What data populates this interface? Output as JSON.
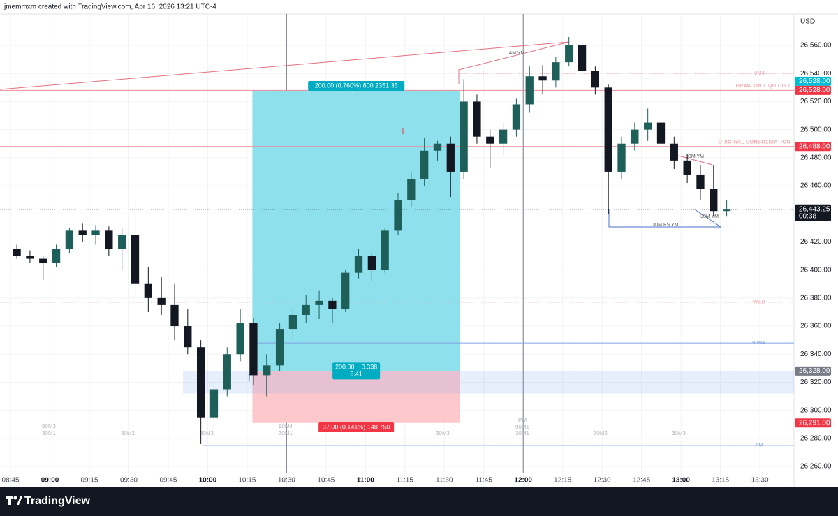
{
  "header": "jmemmxm created with TradingView.com, Apr 16, 2026 13:21 UTC-4",
  "footer": "TradingView",
  "chart_data": {
    "type": "candlestick",
    "currency": "USD",
    "x": [
      "08:45",
      "08:50",
      "08:55",
      "09:00",
      "09:05",
      "09:10",
      "09:15",
      "09:20",
      "09:25",
      "09:30",
      "09:35",
      "09:40",
      "09:45",
      "09:50",
      "09:55",
      "10:00",
      "10:05",
      "10:10",
      "10:15",
      "10:20",
      "10:25",
      "10:30",
      "10:35",
      "10:40",
      "10:45",
      "10:50",
      "10:55",
      "11:00",
      "11:05",
      "11:10",
      "11:15",
      "11:20",
      "11:25",
      "11:30",
      "11:35",
      "11:40",
      "11:45",
      "11:50",
      "11:55",
      "12:00",
      "12:05",
      "12:10",
      "12:15",
      "12:20",
      "12:25",
      "12:30",
      "12:35",
      "12:40",
      "12:45",
      "12:50",
      "12:55",
      "13:00",
      "13:05",
      "13:10",
      "13:15"
    ],
    "open": [
      26415,
      26410,
      26408,
      26405,
      26415,
      26428,
      26425,
      26428,
      26415,
      26425,
      26390,
      26380,
      26375,
      26360,
      26345,
      26295,
      26315,
      26340,
      26362,
      26325,
      26332,
      26358,
      26368,
      26375,
      26378,
      26372,
      26398,
      26410,
      26400,
      26428,
      26450,
      26465,
      26485,
      26490,
      26470,
      26520,
      26495,
      26490,
      26500,
      26518,
      26538,
      26535,
      26548,
      26560,
      26542,
      26530,
      26470,
      26490,
      26500,
      26505,
      26490,
      26478,
      26468,
      26458,
      26442
    ],
    "high": [
      26418,
      26414,
      26410,
      26418,
      26430,
      26433,
      26432,
      26431,
      26430,
      26450,
      26402,
      26395,
      26390,
      26372,
      26350,
      26320,
      26345,
      26372,
      26366,
      26340,
      26362,
      26372,
      26382,
      26385,
      26380,
      26400,
      26415,
      26412,
      26430,
      26455,
      26470,
      26494,
      26492,
      26495,
      26536,
      26525,
      26500,
      26505,
      26522,
      26545,
      26546,
      26552,
      26566,
      26563,
      26545,
      26532,
      26495,
      26505,
      26515,
      26512,
      26495,
      26482,
      26475,
      26475,
      26450
    ],
    "low": [
      26408,
      26405,
      26393,
      26402,
      26412,
      26420,
      26418,
      26410,
      26400,
      26380,
      26370,
      26368,
      26350,
      26340,
      26276,
      26285,
      26310,
      26335,
      26318,
      26310,
      26328,
      26350,
      26362,
      26365,
      26362,
      26370,
      26394,
      26392,
      26398,
      26425,
      26445,
      26460,
      26478,
      26452,
      26465,
      26490,
      26473,
      26482,
      26495,
      26512,
      26525,
      26530,
      26545,
      26538,
      26525,
      26440,
      26465,
      26485,
      26492,
      26485,
      26472,
      26462,
      26450,
      26438,
      26438
    ],
    "close": [
      26410,
      26408,
      26405,
      26415,
      26428,
      26425,
      26428,
      26415,
      26425,
      26390,
      26380,
      26375,
      26360,
      26345,
      26295,
      26315,
      26340,
      26362,
      26325,
      26332,
      26358,
      26368,
      26375,
      26378,
      26372,
      26398,
      26410,
      26400,
      26428,
      26450,
      26465,
      26485,
      26490,
      26470,
      26520,
      26495,
      26490,
      26500,
      26518,
      26538,
      26535,
      26548,
      26560,
      26542,
      26530,
      26470,
      26490,
      26500,
      26505,
      26490,
      26478,
      26468,
      26458,
      26442,
      26443
    ],
    "up_color": "#1f5f5a",
    "down_color": "#131722",
    "xlim": [
      "08:41",
      "13:43"
    ],
    "xticks": [
      "08:45",
      "09:00",
      "09:15",
      "09:30",
      "09:45",
      "10:00",
      "10:15",
      "10:30",
      "10:45",
      "11:00",
      "11:15",
      "11:30",
      "11:45",
      "12:00",
      "12:15",
      "12:30",
      "12:45",
      "13:00",
      "13:15",
      "13:30"
    ],
    "session_lines": [
      "09:00",
      "10:30",
      "12:00"
    ],
    "ylim": [
      26245.6,
      26582.4
    ],
    "yticks": [
      {
        "value": 26260,
        "label": "26,260.00"
      },
      {
        "value": 26280,
        "label": "26,280.00"
      },
      {
        "value": 26300,
        "label": "26,300.00"
      },
      {
        "value": 26320,
        "label": "26,320.00"
      },
      {
        "value": 26340,
        "label": "26,340.00"
      },
      {
        "value": 26360,
        "label": "26,360.00"
      },
      {
        "value": 26380,
        "label": "26,380.00"
      },
      {
        "value": 26400,
        "label": "26,400.00"
      },
      {
        "value": 26420,
        "label": "26,420.00"
      },
      {
        "value": 26440,
        "label": "26,440.00"
      },
      {
        "value": 26460,
        "label": "26,460.00"
      },
      {
        "value": 26480,
        "label": "26,480.00"
      },
      {
        "value": 26500,
        "label": "26,500.00"
      },
      {
        "value": 26520,
        "label": "26,520.00"
      },
      {
        "value": 26540,
        "label": "26,540.00"
      },
      {
        "value": 26560,
        "label": "26,560.00"
      }
    ],
    "levels": [
      {
        "label": "MM4",
        "value": 26540,
        "start": "11:36",
        "color": "#f0a0a8",
        "style": "dotted"
      },
      {
        "label": "DRAW ON LIQUIDITY",
        "value": 26528,
        "start": "08:41",
        "color": "#f28b95",
        "style": "solid"
      },
      {
        "label": "ORIGINAL CONSOLIDATION",
        "value": 26488,
        "start": "08:41",
        "color": "#f28b95",
        "style": "solid"
      },
      {
        "label": "WED",
        "value": 26377,
        "start": "08:41",
        "color": "#f0a0a8",
        "style": "dotted"
      },
      {
        "label": "90M4",
        "value": 26348,
        "start": "10:19",
        "color": "#7ea3e0",
        "style": "solid"
      },
      {
        "label": "AM",
        "value": 26275,
        "start": "09:58",
        "color": "#7ea3e0",
        "style": "solid"
      }
    ],
    "band": [
      26312,
      26328
    ],
    "last_price": {
      "value": 26443.25,
      "label": "26,443.25",
      "countdown": "00:38"
    },
    "price_tags": [
      {
        "value": 26528,
        "label": "26,528.00",
        "color": "#00bcd4"
      },
      {
        "value": 26528,
        "label": "26,528.00",
        "color": "#f23645"
      },
      {
        "value": 26488,
        "label": "26,488.00",
        "color": "#f23645"
      },
      {
        "value": 26328,
        "label": "26,328.00",
        "color": "#787b86"
      },
      {
        "value": 26291,
        "label": "26,291.00",
        "color": "#f23645"
      }
    ],
    "position": {
      "entry": 26328,
      "target": 26528,
      "stop": 26291,
      "start": "10:17",
      "end": "11:36",
      "target_label": "200.00 (0.760%) 800 2351.35",
      "center_label": "200.00 ~ 0.338",
      "center_label2": "5.41",
      "stop_label": "37.00 (0.141%) 148 750"
    },
    "drawings": [
      "AM YM",
      "30M YM",
      "30M YM",
      "30M ES YM"
    ],
    "sessions": [
      "90M3",
      "30M1",
      "30M2",
      "30M3",
      "90M4",
      "30M1",
      "30M3",
      "PM",
      "90M1",
      "30M1",
      "30M2",
      "30M3"
    ]
  }
}
